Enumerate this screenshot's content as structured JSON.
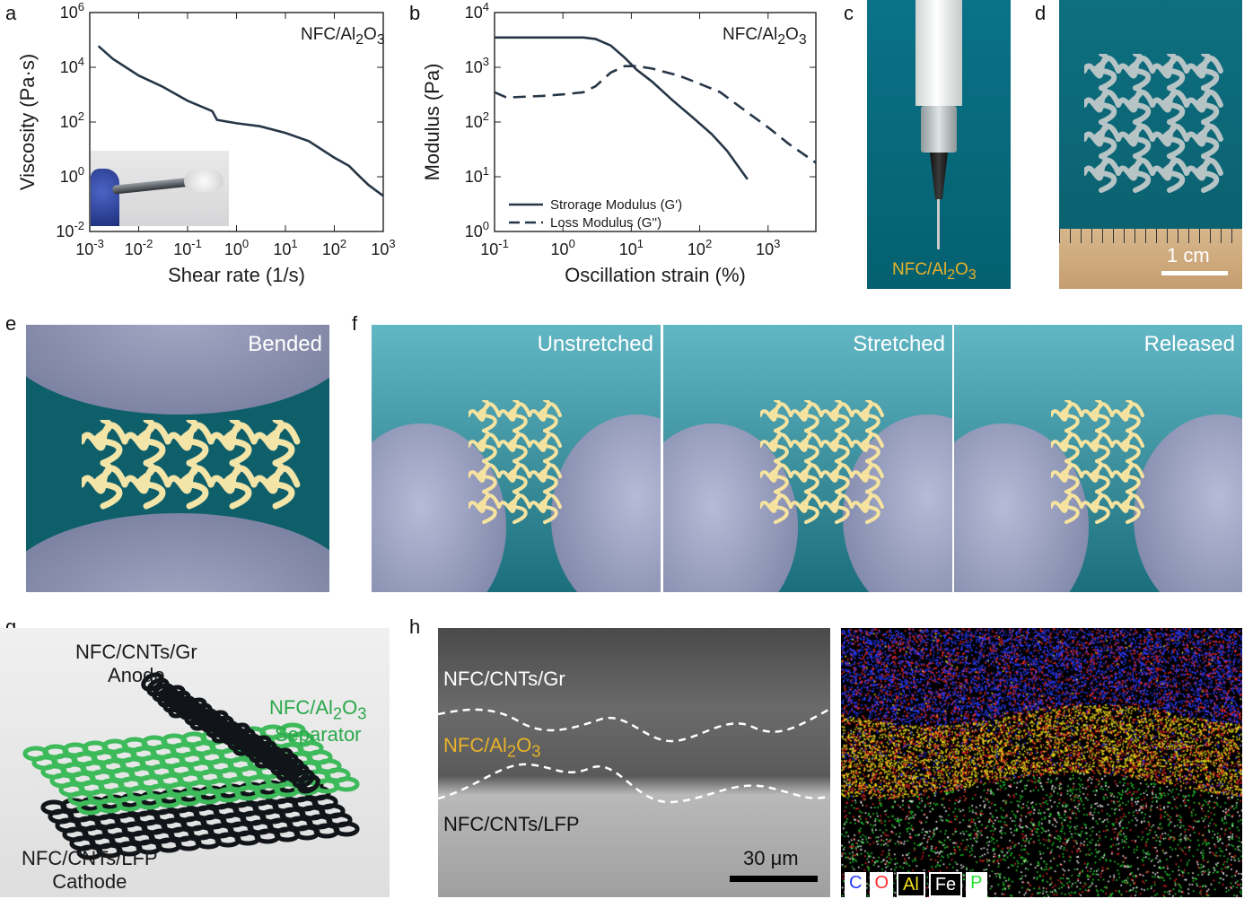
{
  "panels": {
    "a": {
      "letter": "a",
      "tag": "NFC/Al",
      "tag_sub": "2",
      "tag_mid": "O",
      "tag_sub2": "3",
      "chart_data": {
        "type": "line",
        "xlabel": "Shear rate (1/s)",
        "ylabel": "Viscosity (Pa·s)",
        "xscale": "log",
        "yscale": "log",
        "xlim": [
          0.001,
          1000
        ],
        "ylim": [
          0.01,
          1000000
        ],
        "x_ticks": [
          "10-3",
          "10-2",
          "10-1",
          "100",
          "101",
          "102",
          "103"
        ],
        "y_ticks": [
          "10-2",
          "100",
          "102",
          "104",
          "106"
        ],
        "series": [
          {
            "x": [
              0.0015,
              0.003,
              0.01,
              0.03,
              0.1,
              0.25,
              0.32,
              0.4,
              1,
              3,
              10,
              30,
              100,
              200,
              300,
              500,
              1000
            ],
            "y": [
              60000,
              20000,
              5000,
              2000,
              600,
              300,
              250,
              120,
              90,
              70,
              40,
              20,
              5,
              2.5,
              1.2,
              0.5,
              0.2
            ]
          }
        ]
      }
    },
    "b": {
      "letter": "b",
      "tag": "NFC/Al",
      "tag_sub": "2",
      "tag_mid": "O",
      "tag_sub2": "3",
      "chart_data": {
        "type": "line",
        "xlabel": "Oscillation strain (%)",
        "ylabel": "Modulus (Pa)",
        "xscale": "log",
        "yscale": "log",
        "xlim": [
          0.1,
          5000
        ],
        "ylim": [
          1,
          10000
        ],
        "x_ticks": [
          "10-1",
          "100",
          "101",
          "102",
          "103"
        ],
        "y_ticks": [
          "100",
          "101",
          "102",
          "103",
          "104"
        ],
        "legend_position": "bottom-left",
        "series": [
          {
            "name": "Strorage Modulus (G')",
            "style": "solid",
            "x": [
              0.1,
              0.5,
              1,
              2,
              3,
              5,
              8,
              12,
              20,
              40,
              80,
              150,
              250,
              500
            ],
            "y": [
              3500,
              3500,
              3500,
              3500,
              3300,
              2500,
              1500,
              900,
              550,
              250,
              120,
              60,
              30,
              9
            ]
          },
          {
            "name": "Loss Modulus (G'')",
            "style": "dashed",
            "x": [
              0.1,
              0.15,
              0.5,
              1,
              2,
              3,
              5,
              8,
              12,
              20,
              50,
              100,
              200,
              500,
              1000,
              2000,
              5000
            ],
            "y": [
              350,
              280,
              300,
              320,
              350,
              450,
              800,
              1050,
              1050,
              950,
              700,
              500,
              350,
              150,
              80,
              40,
              18
            ]
          }
        ]
      }
    },
    "c": {
      "letter": "c",
      "caption": "NFC/Al",
      "sub": "2",
      "mid": "O",
      "sub2": "3"
    },
    "d": {
      "letter": "d",
      "scale": "1 cm"
    },
    "e": {
      "letter": "e",
      "label": "Bended"
    },
    "f": {
      "letter": "f",
      "labels": [
        "Unstretched",
        "Stretched",
        "Released"
      ]
    },
    "g": {
      "letter": "g",
      "anode_line1": "NFC/CNTs/Gr",
      "anode_line2": "Anode",
      "sep_line1a": "NFC/Al",
      "sep_sub": "2",
      "sep_mid": "O",
      "sep_sub2": "3",
      "sep_line2": "Separator",
      "cathode_line1": "NFC/CNTs/LFP",
      "cathode_line2": "Cathode"
    },
    "h": {
      "letter": "h",
      "top_layer": "NFC/CNTs/Gr",
      "mid_layer": "NFC/Al",
      "mid_sub": "2",
      "mid_o": "O",
      "mid_sub2": "3",
      "bottom_layer": "NFC/CNTs/LFP",
      "scale": "30 μm",
      "legend": [
        {
          "label": "C",
          "color": "#2a3cff"
        },
        {
          "label": "O",
          "color": "#ff2a2a"
        },
        {
          "label": "Al",
          "color": "#f2e21a"
        },
        {
          "label": "Fe",
          "color": "#ffffff"
        },
        {
          "label": "P",
          "color": "#22e030"
        }
      ]
    }
  }
}
